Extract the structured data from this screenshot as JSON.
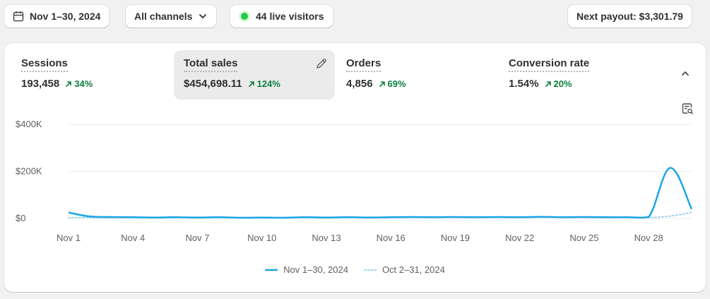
{
  "toolbar": {
    "date_range": "Nov 1–30, 2024",
    "channels": "All channels",
    "live_visitors": "44 live visitors",
    "next_payout": "Next payout: $3,301.79"
  },
  "metrics": [
    {
      "label": "Sessions",
      "value": "193,458",
      "change": "34%",
      "active": false
    },
    {
      "label": "Total sales",
      "value": "$454,698.11",
      "change": "124%",
      "active": true
    },
    {
      "label": "Orders",
      "value": "4,856",
      "change": "69%",
      "active": false
    },
    {
      "label": "Conversion rate",
      "value": "1.54%",
      "change": "20%",
      "active": false
    }
  ],
  "colors": {
    "primary_series": "#1ba6e6",
    "comparison_series": "#9fd4ef",
    "trend_positive": "#0c7d3d",
    "live_dot": "#22c94a"
  },
  "chart_data": {
    "type": "line",
    "ylim": [
      0,
      400000
    ],
    "y_ticks": [
      "$400K",
      "$200K",
      "$0"
    ],
    "y_tick_values": [
      400000,
      200000,
      0
    ],
    "x_tick_labels": [
      "Nov 1",
      "Nov 4",
      "Nov 7",
      "Nov 10",
      "Nov 13",
      "Nov 16",
      "Nov 19",
      "Nov 22",
      "Nov 25",
      "Nov 28"
    ],
    "grid": true,
    "legend_position": "bottom",
    "series": [
      {
        "name": "Nov 1–30, 2024",
        "style": "solid",
        "values": [
          25000,
          8000,
          6000,
          5000,
          4000,
          5000,
          4000,
          5000,
          3000,
          4000,
          3000,
          5000,
          4000,
          5000,
          4000,
          5000,
          6000,
          5000,
          6000,
          5000,
          6000,
          5000,
          7000,
          5000,
          6000,
          5000,
          5000,
          6000,
          215000,
          40000
        ]
      },
      {
        "name": "Oct 2–31, 2024",
        "style": "dotted",
        "values": [
          3000,
          4000,
          3000,
          4000,
          3000,
          4000,
          5000,
          4000,
          3000,
          4000,
          3000,
          4000,
          5000,
          4000,
          5000,
          4000,
          5000,
          6000,
          5000,
          6000,
          5000,
          4000,
          5000,
          6000,
          5000,
          4000,
          5000,
          4000,
          10000,
          25000
        ]
      }
    ]
  }
}
